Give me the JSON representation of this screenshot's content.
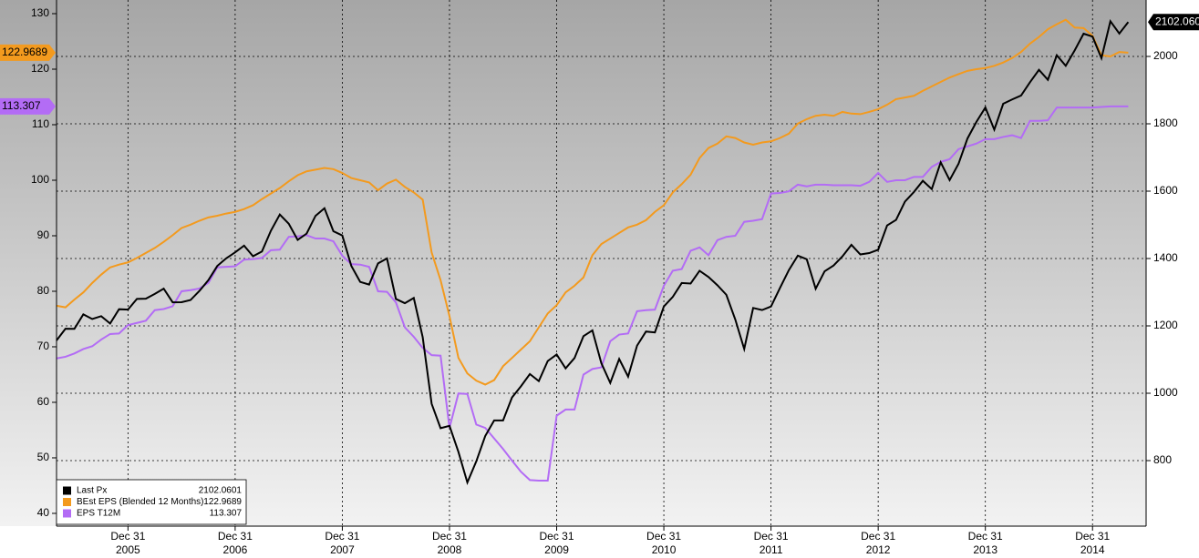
{
  "chart_data": {
    "type": "line",
    "x": [
      "2005-04",
      "2005-05",
      "2005-06",
      "2005-07",
      "2005-08",
      "2005-09",
      "2005-10",
      "2005-11",
      "2005-12",
      "2006-01",
      "2006-02",
      "2006-03",
      "2006-04",
      "2006-05",
      "2006-06",
      "2006-07",
      "2006-08",
      "2006-09",
      "2006-10",
      "2006-11",
      "2006-12",
      "2007-01",
      "2007-02",
      "2007-03",
      "2007-04",
      "2007-05",
      "2007-06",
      "2007-07",
      "2007-08",
      "2007-09",
      "2007-10",
      "2007-11",
      "2007-12",
      "2008-01",
      "2008-02",
      "2008-03",
      "2008-04",
      "2008-05",
      "2008-06",
      "2008-07",
      "2008-08",
      "2008-09",
      "2008-10",
      "2008-11",
      "2008-12",
      "2009-01",
      "2009-02",
      "2009-03",
      "2009-04",
      "2009-05",
      "2009-06",
      "2009-07",
      "2009-08",
      "2009-09",
      "2009-10",
      "2009-11",
      "2009-12",
      "2010-01",
      "2010-02",
      "2010-03",
      "2010-04",
      "2010-05",
      "2010-06",
      "2010-07",
      "2010-08",
      "2010-09",
      "2010-10",
      "2010-11",
      "2010-12",
      "2011-01",
      "2011-02",
      "2011-03",
      "2011-04",
      "2011-05",
      "2011-06",
      "2011-07",
      "2011-08",
      "2011-09",
      "2011-10",
      "2011-11",
      "2011-12",
      "2012-01",
      "2012-02",
      "2012-03",
      "2012-04",
      "2012-05",
      "2012-06",
      "2012-07",
      "2012-08",
      "2012-09",
      "2012-10",
      "2012-11",
      "2012-12",
      "2013-01",
      "2013-02",
      "2013-03",
      "2013-04",
      "2013-05",
      "2013-06",
      "2013-07",
      "2013-08",
      "2013-09",
      "2013-10",
      "2013-11",
      "2013-12",
      "2014-01",
      "2014-02",
      "2014-03",
      "2014-04",
      "2014-05",
      "2014-06",
      "2014-07",
      "2014-08",
      "2014-09",
      "2014-10",
      "2014-11",
      "2014-12",
      "2015-01",
      "2015-02",
      "2015-03",
      "2015-04"
    ],
    "xlim": [
      "2005-04",
      "2015-06"
    ],
    "xticks": [
      {
        "value": "2005-12",
        "label": "Dec 31",
        "year": "2005"
      },
      {
        "value": "2006-12",
        "label": "Dec 31",
        "year": "2006"
      },
      {
        "value": "2007-12",
        "label": "Dec 31",
        "year": "2007"
      },
      {
        "value": "2008-12",
        "label": "Dec 31",
        "year": "2008"
      },
      {
        "value": "2009-12",
        "label": "Dec 31",
        "year": "2009"
      },
      {
        "value": "2010-12",
        "label": "Dec 31",
        "year": "2010"
      },
      {
        "value": "2011-12",
        "label": "Dec 31",
        "year": "2011"
      },
      {
        "value": "2012-12",
        "label": "Dec 31",
        "year": "2012"
      },
      {
        "value": "2013-12",
        "label": "Dec 31",
        "year": "2013"
      },
      {
        "value": "2014-12",
        "label": "Dec 31",
        "year": "2014"
      }
    ],
    "ylim": [
      37.7,
      132.46
    ],
    "yticks": [
      40,
      50,
      60,
      70,
      80,
      90,
      100,
      110,
      120,
      130
    ],
    "y2lim": [
      605.4,
      2167.6
    ],
    "y2ticks": [
      800,
      1000,
      1200,
      1400,
      1600,
      1800,
      2000
    ],
    "grid": true,
    "legend": "bottom-left",
    "series": [
      {
        "name": "Last Px",
        "color": "#000000",
        "axis": "y2",
        "values": [
          1156.85,
          1191.5,
          1191.33,
          1234.18,
          1220.33,
          1228.81,
          1207.01,
          1249.48,
          1248.29,
          1280.08,
          1280.66,
          1294.83,
          1310.61,
          1270.09,
          1270.2,
          1276.66,
          1303.82,
          1335.85,
          1377.94,
          1400.63,
          1418.3,
          1438.24,
          1406.82,
          1420.86,
          1482.37,
          1530.62,
          1503.35,
          1455.27,
          1473.99,
          1526.75,
          1549.38,
          1481.14,
          1468.36,
          1378.55,
          1330.63,
          1322.7,
          1385.59,
          1400.38,
          1280.0,
          1267.38,
          1282.83,
          1166.36,
          968.75,
          896.24,
          903.25,
          825.88,
          735.09,
          797.87,
          872.81,
          919.14,
          919.32,
          987.48,
          1020.62,
          1057.08,
          1036.19,
          1095.63,
          1115.1,
          1073.87,
          1104.49,
          1169.43,
          1186.69,
          1089.41,
          1030.71,
          1101.6,
          1049.33,
          1141.2,
          1183.26,
          1180.55,
          1257.64,
          1286.12,
          1327.22,
          1325.83,
          1363.61,
          1345.2,
          1320.64,
          1292.28,
          1218.89,
          1131.42,
          1253.3,
          1246.96,
          1257.6,
          1312.41,
          1365.68,
          1408.47,
          1397.91,
          1310.33,
          1362.16,
          1379.32,
          1406.58,
          1440.67,
          1412.16,
          1416.18,
          1426.19,
          1498.11,
          1514.68,
          1569.19,
          1597.57,
          1630.74,
          1606.28,
          1685.73,
          1632.97,
          1681.55,
          1756.54,
          1805.81,
          1848.36,
          1782.59,
          1859.45,
          1872.34,
          1883.95,
          1923.57,
          1960.23,
          1930.67,
          2003.37,
          1972.29,
          2018.05,
          2067.56,
          2058.9,
          1994.99,
          2104.5,
          2067.89,
          2102.0601
        ]
      },
      {
        "name": "BEst EPS (Blended 12 Months)",
        "color": "#f39a1e",
        "values": [
          77.4,
          77.1,
          78.5,
          79.8,
          81.5,
          83.0,
          84.3,
          84.8,
          85.2,
          86.0,
          86.9,
          87.8,
          88.9,
          90.1,
          91.4,
          92.0,
          92.7,
          93.3,
          93.6,
          94.0,
          94.3,
          94.8,
          95.5,
          96.6,
          97.6,
          98.6,
          99.8,
          100.9,
          101.6,
          101.9,
          102.2,
          102.0,
          101.3,
          100.4,
          100.0,
          99.6,
          98.2,
          99.4,
          100.1,
          98.8,
          97.8,
          96.5,
          87.0,
          82.0,
          75.5,
          68.0,
          65.2,
          63.9,
          63.2,
          64.0,
          66.5,
          68.0,
          69.5,
          71.0,
          73.5,
          76.0,
          77.5,
          79.8,
          81.0,
          82.5,
          86.5,
          88.5,
          89.5,
          90.5,
          91.5,
          92.0,
          92.8,
          94.3,
          95.5,
          97.8,
          99.3,
          101.0,
          104.0,
          105.8,
          106.6,
          107.9,
          107.6,
          106.8,
          106.4,
          106.8,
          107.0,
          107.6,
          108.4,
          110.2,
          111.0,
          111.6,
          111.8,
          111.6,
          112.3,
          112.0,
          111.9,
          112.3,
          112.8,
          113.6,
          114.6,
          114.9,
          115.2,
          116.1,
          116.9,
          117.7,
          118.5,
          119.1,
          119.7,
          120.0,
          120.2,
          120.6,
          121.2,
          122.0,
          123.1,
          124.6,
          125.8,
          127.2,
          128.1,
          128.9,
          127.5,
          127.4,
          126.0,
          122.5,
          122.3,
          123.1,
          122.9689
        ]
      },
      {
        "name": "EPS T12M",
        "color": "#b36cf5",
        "values": [
          67.9,
          68.2,
          68.8,
          69.6,
          70.1,
          71.3,
          72.3,
          72.4,
          73.9,
          74.3,
          74.7,
          76.6,
          76.8,
          77.3,
          80.0,
          80.2,
          80.5,
          81.5,
          84.3,
          84.4,
          84.5,
          85.7,
          85.8,
          86.0,
          87.4,
          87.5,
          89.8,
          89.9,
          90.1,
          89.5,
          89.5,
          89.0,
          86.4,
          84.9,
          84.8,
          84.4,
          80.0,
          79.9,
          78.0,
          73.5,
          71.8,
          69.8,
          68.5,
          68.4,
          55.4,
          61.6,
          61.5,
          56.0,
          55.4,
          53.5,
          51.6,
          49.5,
          47.5,
          46.0,
          45.9,
          45.9,
          57.6,
          58.7,
          58.7,
          65.0,
          66.0,
          66.3,
          71.0,
          72.2,
          72.4,
          76.4,
          76.6,
          76.7,
          81.0,
          83.7,
          84.0,
          87.3,
          87.9,
          86.5,
          89.2,
          89.8,
          90.0,
          92.5,
          92.7,
          93.0,
          97.6,
          97.7,
          98.0,
          99.2,
          98.9,
          99.2,
          99.2,
          99.1,
          99.1,
          99.1,
          99.0,
          99.7,
          101.3,
          99.7,
          100.0,
          100.0,
          100.6,
          100.6,
          102.4,
          103.3,
          103.8,
          105.6,
          106.1,
          106.6,
          107.4,
          107.4,
          107.8,
          108.1,
          107.6,
          110.7,
          110.7,
          110.8,
          113.1,
          113.1,
          113.1,
          113.1,
          113.1,
          113.2,
          113.3,
          113.3,
          113.307
        ]
      }
    ]
  }
}
